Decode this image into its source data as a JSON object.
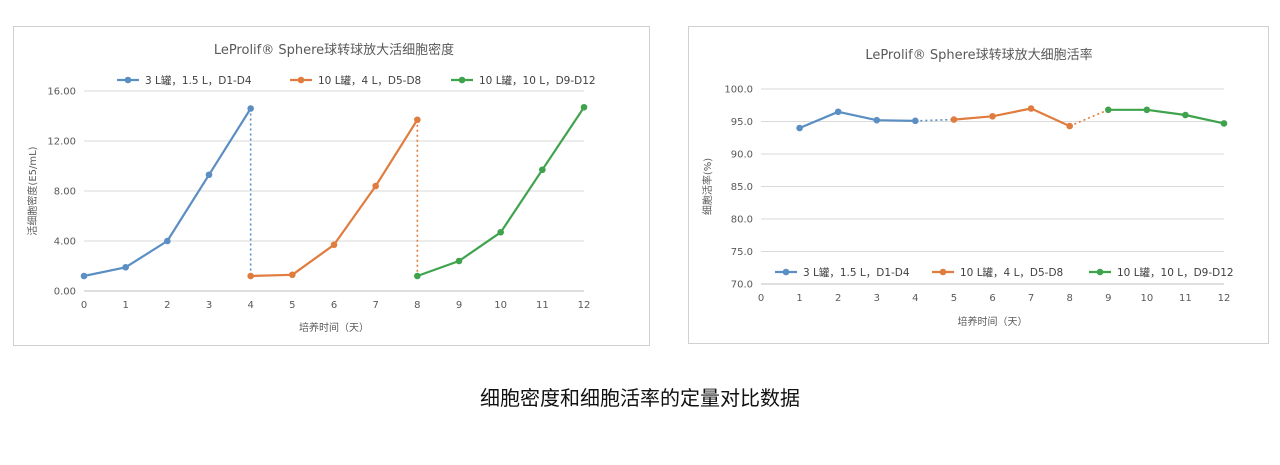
{
  "caption": "细胞密度和细胞活率的定量对比数据",
  "colors": {
    "s1": "#5b8ec2",
    "s2": "#e07c3e",
    "s3": "#3fa34d",
    "grid": "#d9d9d9",
    "axis": "#bfbfbf",
    "text": "#595959"
  },
  "chart_data": [
    {
      "type": "line",
      "title": "LeProlif® Sphere球转球放大活细胞密度",
      "xlabel": "培养时间（天）",
      "ylabel": "活细胞密度(E5/mL)",
      "xlim": [
        0,
        12
      ],
      "ylim": [
        0,
        16
      ],
      "xticks": [
        "0",
        "1",
        "2",
        "3",
        "4",
        "5",
        "6",
        "7",
        "8",
        "9",
        "10",
        "11",
        "12"
      ],
      "yticks": [
        "0.00",
        "4.00",
        "8.00",
        "12.00",
        "16.00"
      ],
      "grid": true,
      "legend_position": "top",
      "series": [
        {
          "name": "3 L罐，1.5 L，D1-D4",
          "color": "#5b8ec2",
          "x": [
            0,
            1,
            2,
            3,
            4
          ],
          "y": [
            1.2,
            1.9,
            4.0,
            9.3,
            14.6
          ]
        },
        {
          "name": "10 L罐，4 L，D5-D8",
          "color": "#e07c3e",
          "x": [
            4,
            5,
            6,
            7,
            8
          ],
          "y": [
            1.2,
            1.3,
            3.7,
            8.4,
            13.7
          ]
        },
        {
          "name": "10 L罐，10 L，D9-D12",
          "color": "#3fa34d",
          "x": [
            8,
            9,
            10,
            11,
            12
          ],
          "y": [
            1.2,
            2.4,
            4.7,
            9.7,
            14.7
          ]
        }
      ],
      "transfers": [
        {
          "x": 4,
          "y_from": 14.6,
          "y_to": 1.2,
          "color": "#5b8ec2"
        },
        {
          "x": 8,
          "y_from": 13.7,
          "y_to": 1.2,
          "color": "#e07c3e"
        }
      ]
    },
    {
      "type": "line",
      "title": "LeProlif® Sphere球转球放大细胞活率",
      "xlabel": "培养时间（天）",
      "ylabel": "细胞活率(%)",
      "xlim": [
        0,
        12
      ],
      "ylim": [
        70,
        100
      ],
      "xticks": [
        "0",
        "1",
        "2",
        "3",
        "4",
        "5",
        "6",
        "7",
        "8",
        "9",
        "10",
        "11",
        "12"
      ],
      "yticks": [
        "70.0",
        "75.0",
        "80.0",
        "85.0",
        "90.0",
        "95.0",
        "100.0"
      ],
      "grid": true,
      "legend_position": "bottom",
      "series": [
        {
          "name": "3 L罐，1.5 L，D1-D4",
          "color": "#5b8ec2",
          "x": [
            1,
            2,
            3,
            4
          ],
          "y": [
            94.0,
            96.5,
            95.2,
            95.1
          ]
        },
        {
          "name": "10 L罐，4 L，D5-D8",
          "color": "#e07c3e",
          "x": [
            5,
            6,
            7,
            8
          ],
          "y": [
            95.3,
            95.8,
            97.0,
            94.3
          ]
        },
        {
          "name": "10 L罐，10 L，D9-D12",
          "color": "#3fa34d",
          "x": [
            9,
            10,
            11,
            12
          ],
          "y": [
            96.8,
            96.8,
            96.0,
            94.7
          ]
        }
      ],
      "links": [
        {
          "from": [
            4,
            95.1
          ],
          "to": [
            5,
            95.3
          ],
          "color": "#5b8ec2"
        },
        {
          "from": [
            8,
            94.3
          ],
          "to": [
            9,
            96.8
          ],
          "color": "#e07c3e"
        }
      ]
    }
  ]
}
